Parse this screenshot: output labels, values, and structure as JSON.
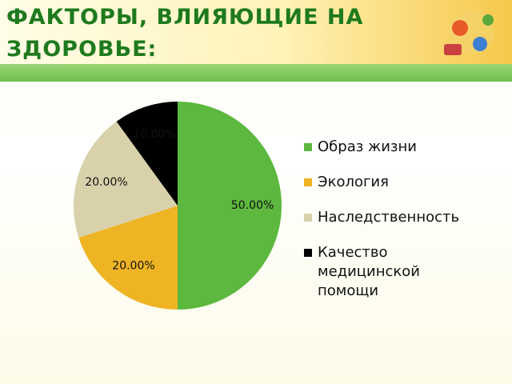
{
  "header": {
    "title": "ФАКТОРЫ, ВЛИЯЮЩИЕ НА ЗДОРОВЬЕ:"
  },
  "chart_data": {
    "type": "pie",
    "categories": [
      "Образ жизни",
      "Экология",
      "Наследственность",
      "Качество медицинской помощи"
    ],
    "values": [
      50,
      20,
      20,
      10
    ],
    "value_labels": [
      "50.00%",
      "20.00%",
      "20.00%",
      "10.00%"
    ],
    "colors": [
      "#5cb83e",
      "#efb424",
      "#d9d1aa",
      "#000000"
    ]
  }
}
